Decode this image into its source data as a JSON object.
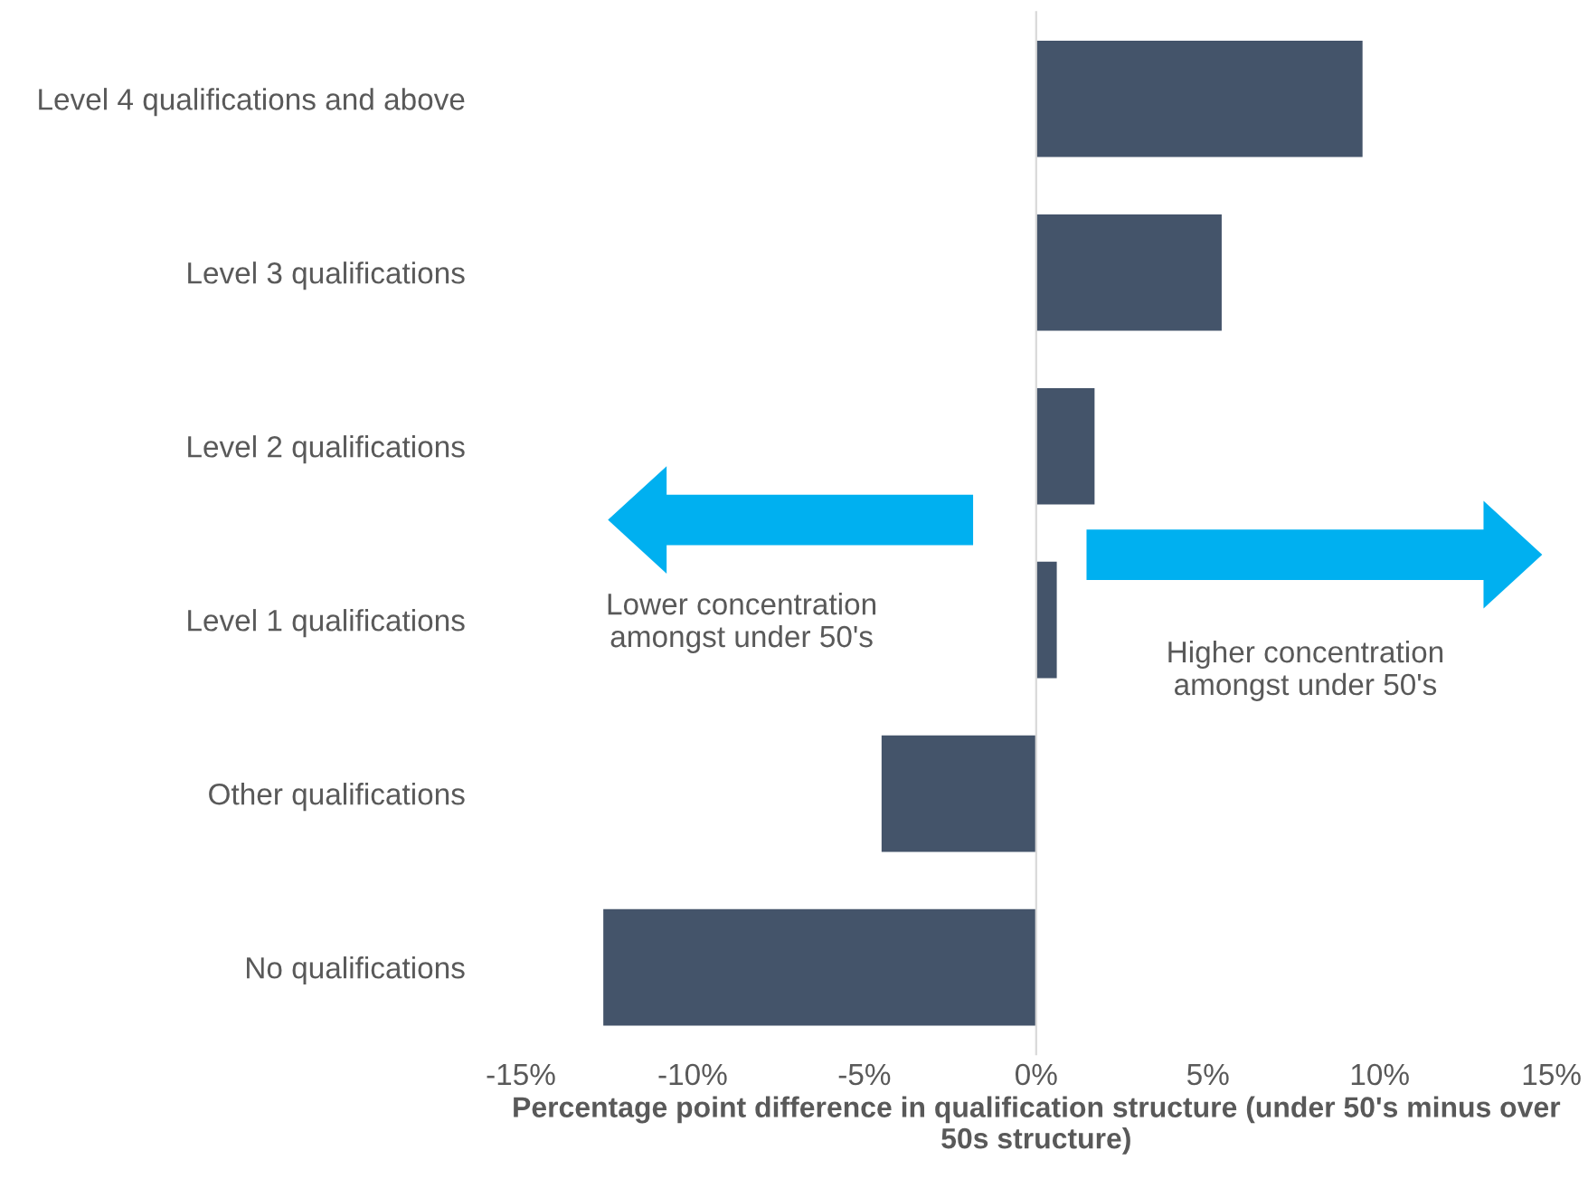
{
  "chart_data": {
    "type": "bar",
    "orientation": "horizontal",
    "xlabel": "Percentage point difference in qualification structure (under 50's minus over 50s structure)",
    "categories": [
      "Level 4 qualifications and above",
      "Level 3 qualifications",
      "Level 2 qualifications",
      "Level 1 qualifications",
      "Other qualifications",
      "No qualifications"
    ],
    "values": [
      9.5,
      5.4,
      1.7,
      0.6,
      -4.5,
      -12.6
    ],
    "color": "#44546a",
    "xlim": [
      -15,
      15
    ],
    "xticks": [
      {
        "value": -15,
        "label": "-15%"
      },
      {
        "value": -10,
        "label": "-10%"
      },
      {
        "value": -5,
        "label": "-5%"
      },
      {
        "value": 0,
        "label": "0%"
      },
      {
        "value": 5,
        "label": "5%"
      },
      {
        "value": 10,
        "label": "10%"
      },
      {
        "value": 15,
        "label": "15%"
      }
    ],
    "legend": false,
    "annotations": [
      "Lower concentration\namongst under 50's",
      "Higher concentration\namongst under 50's"
    ]
  }
}
